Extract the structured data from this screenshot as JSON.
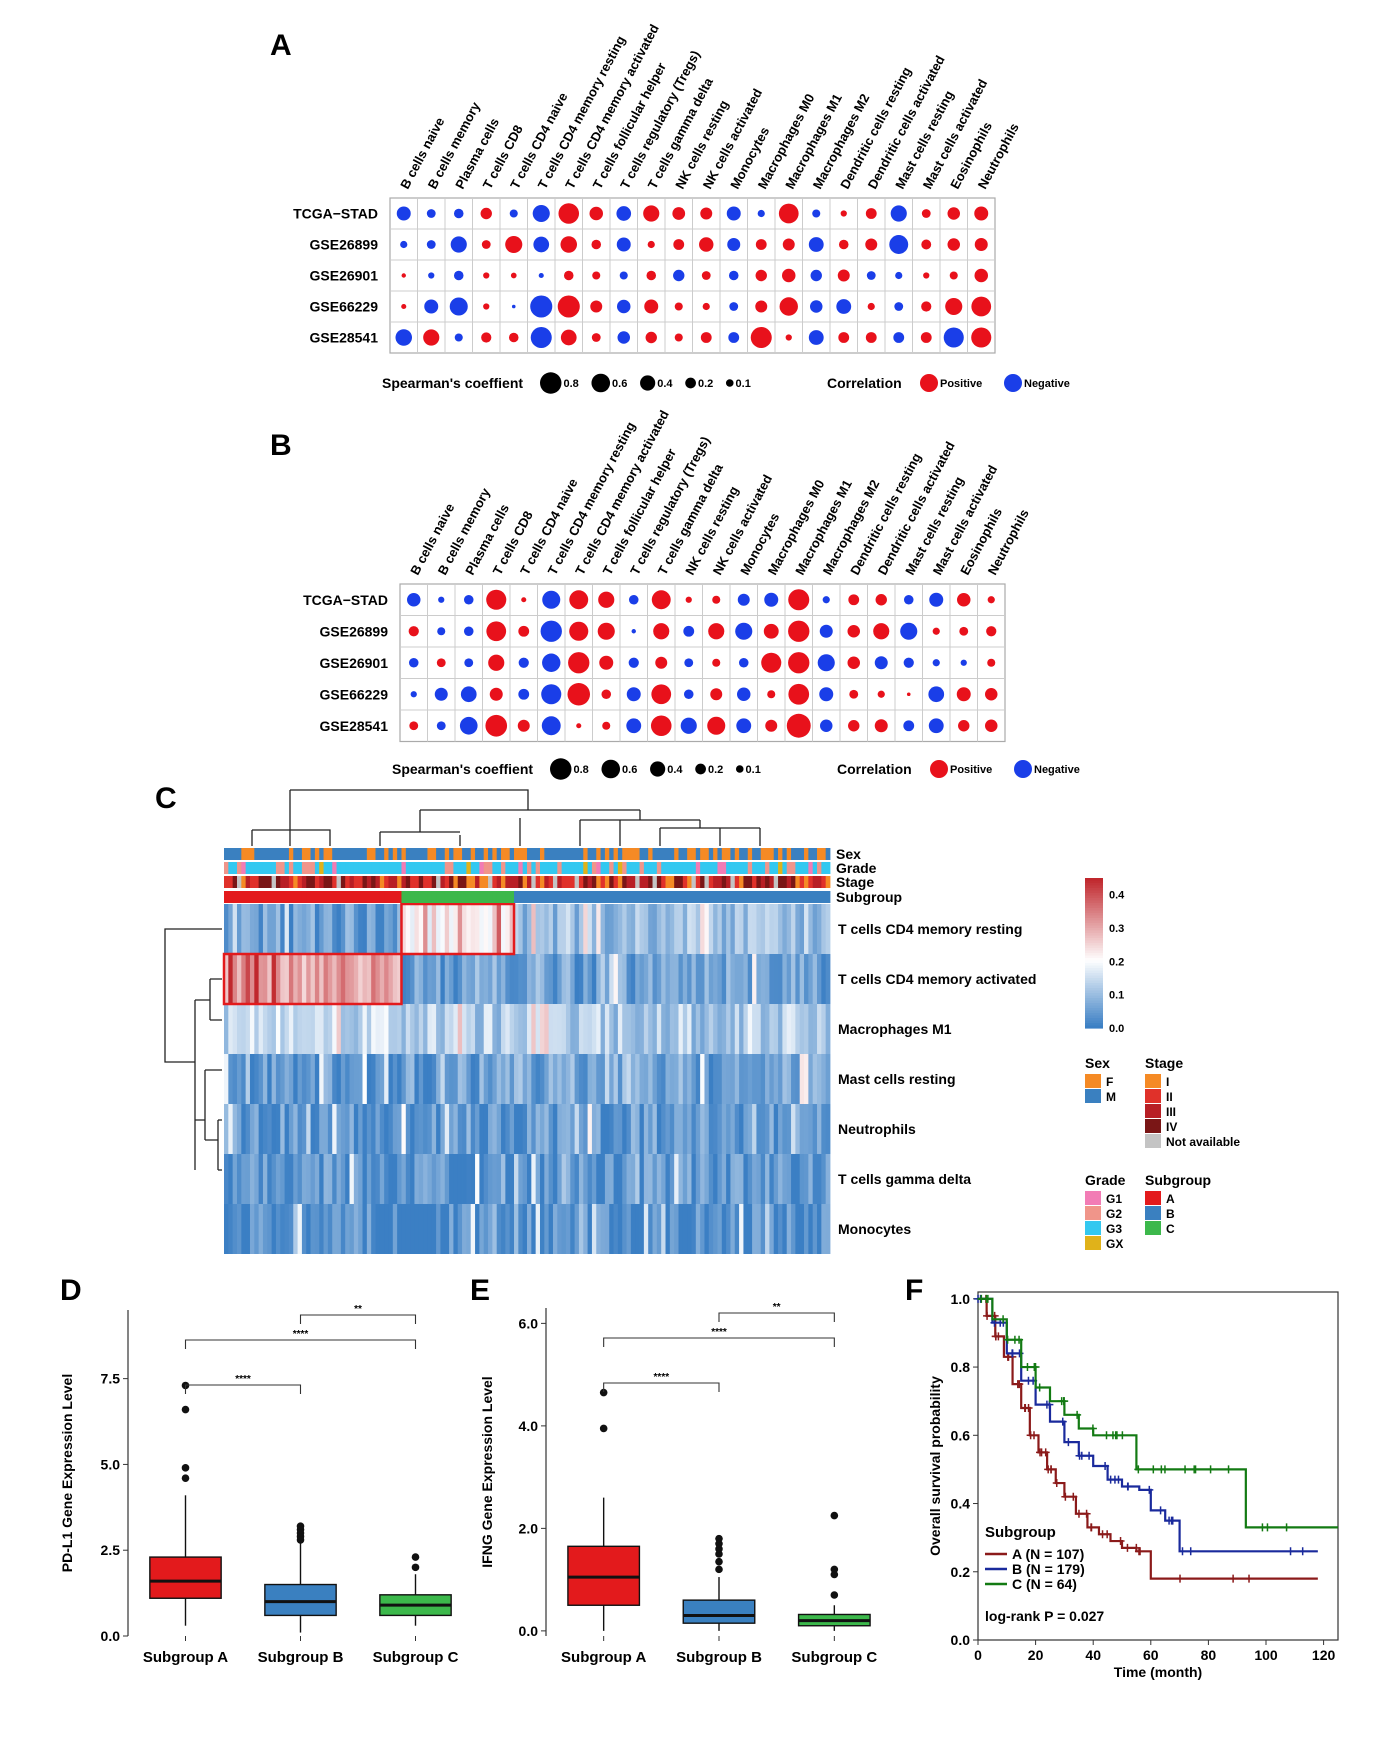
{
  "panels": {
    "a": "A",
    "b": "B",
    "c": "C",
    "d": "D",
    "e": "E",
    "f": "F"
  },
  "colors": {
    "pos": "#e8111b",
    "neg": "#1a3ee8",
    "red": "#e31a1c",
    "blue": "#3a80c0",
    "green": "#3cb84b",
    "heat_low": "#3b7fc4",
    "heat_mid": "#ffffff",
    "heat_high": "#c0272d",
    "km_a": "#8b1a1a",
    "km_b": "#1a2a9c",
    "km_c": "#137a13"
  },
  "cell_types": [
    "B cells naive",
    "B cells memory",
    "Plasma cells",
    "T cells CD8",
    "T cells CD4 naive",
    "T cells CD4 memory resting",
    "T cells CD4 memory activated",
    "T cells follicular helper",
    "T cells regulatory (Tregs)",
    "T cells gamma delta",
    "NK cells resting",
    "NK cells activated",
    "Monocytes",
    "Macrophages M0",
    "Macrophages M1",
    "Macrophages M2",
    "Dendritic cells resting",
    "Dendritic cells activated",
    "Mast cells resting",
    "Mast cells activated",
    "Eosinophils",
    "Neutrophils"
  ],
  "datasets": [
    "TCGA−STAD",
    "GSE26899",
    "GSE26901",
    "GSE66229",
    "GSE28541"
  ],
  "legend": {
    "size_title": "Spearman's coeffient",
    "size_values": [
      0.8,
      0.6,
      0.4,
      0.2,
      0.1
    ],
    "size_labels": [
      "0.8",
      "0.6",
      "0.4",
      "0.2",
      "0.1"
    ],
    "corr_title": "Correlation",
    "pos_label": "Positive",
    "neg_label": "Negative"
  },
  "chart_data": [
    {
      "type": "scatter",
      "panel": "A",
      "subtype": "correlation dot matrix",
      "x_categories": "cell_types",
      "y_categories": "datasets",
      "values": [
        [
          -0.3,
          -0.12,
          -0.14,
          0.2,
          -0.1,
          -0.45,
          0.65,
          0.28,
          -0.33,
          0.4,
          0.25,
          0.22,
          -0.3,
          -0.08,
          0.6,
          -0.1,
          0.06,
          0.18,
          -0.4,
          0.12,
          0.24,
          0.3
        ],
        [
          -0.08,
          -0.12,
          -0.4,
          0.12,
          0.45,
          -0.38,
          0.42,
          0.14,
          -0.3,
          0.08,
          0.18,
          0.32,
          -0.26,
          0.18,
          0.22,
          -0.34,
          0.14,
          0.22,
          -0.55,
          0.15,
          0.24,
          0.26
        ],
        [
          0.03,
          -0.06,
          -0.14,
          0.06,
          0.05,
          -0.04,
          0.14,
          0.1,
          -0.1,
          0.14,
          -0.2,
          0.12,
          -0.14,
          0.2,
          0.28,
          -0.2,
          0.22,
          -0.12,
          -0.08,
          0.06,
          0.1,
          0.28
        ],
        [
          0.04,
          -0.3,
          -0.5,
          0.06,
          -0.02,
          -0.75,
          0.75,
          0.22,
          -0.28,
          0.3,
          0.1,
          0.08,
          -0.12,
          0.22,
          0.52,
          -0.24,
          -0.34,
          0.08,
          -0.12,
          0.16,
          0.45,
          0.6
        ],
        [
          -0.42,
          0.4,
          -0.1,
          0.16,
          0.14,
          -0.68,
          0.38,
          0.12,
          -0.24,
          0.2,
          0.1,
          0.18,
          -0.18,
          0.68,
          0.06,
          -0.34,
          0.18,
          0.18,
          -0.18,
          0.18,
          -0.62,
          0.62
        ]
      ]
    },
    {
      "type": "scatter",
      "panel": "B",
      "subtype": "correlation dot matrix",
      "x_categories": "cell_types",
      "y_categories": "datasets",
      "values": [
        [
          -0.28,
          -0.06,
          -0.14,
          0.62,
          0.04,
          -0.5,
          0.55,
          0.4,
          -0.14,
          0.55,
          0.06,
          0.1,
          -0.22,
          -0.3,
          0.68,
          -0.08,
          0.18,
          0.2,
          -0.14,
          -0.3,
          0.28,
          0.08
        ],
        [
          0.16,
          -0.1,
          -0.14,
          0.6,
          0.18,
          -0.7,
          0.56,
          0.45,
          -0.03,
          0.4,
          -0.18,
          0.4,
          -0.45,
          0.34,
          0.7,
          -0.26,
          0.24,
          0.4,
          -0.45,
          0.08,
          0.12,
          0.16
        ],
        [
          -0.14,
          0.12,
          -0.12,
          0.4,
          -0.16,
          -0.52,
          0.7,
          0.3,
          -0.16,
          0.22,
          -0.12,
          0.1,
          -0.14,
          0.62,
          0.7,
          -0.45,
          0.24,
          -0.26,
          -0.16,
          -0.08,
          -0.06,
          0.1
        ],
        [
          -0.06,
          -0.26,
          -0.38,
          0.26,
          -0.18,
          -0.62,
          0.78,
          0.14,
          -0.3,
          0.6,
          -0.14,
          0.22,
          -0.28,
          0.1,
          0.66,
          -0.3,
          0.12,
          0.08,
          0.02,
          -0.38,
          0.3,
          0.24
        ],
        [
          0.12,
          -0.12,
          -0.48,
          0.72,
          0.22,
          -0.55,
          0.04,
          0.1,
          -0.34,
          0.65,
          -0.4,
          0.5,
          -0.34,
          0.22,
          0.88,
          -0.24,
          0.2,
          0.26,
          -0.18,
          -0.34,
          0.2,
          0.24
        ]
      ]
    },
    {
      "type": "heatmap",
      "panel": "C",
      "rows": [
        "T cells CD4 memory resting",
        "T cells CD4 memory activated",
        "Macrophages M1",
        "Mast cells resting",
        "Neutrophils",
        "T cells gamma delta",
        "Monocytes"
      ],
      "annotation_tracks": [
        "Sex",
        "Grade",
        "Stage",
        "Subgroup"
      ],
      "color_scale": {
        "min": 0.0,
        "max": 0.45,
        "ticks": [
          0.0,
          0.1,
          0.2,
          0.3,
          0.4
        ],
        "tick_labels": [
          "0.0",
          "0.1",
          "0.2",
          "0.3",
          "0.4"
        ]
      },
      "legends": [
        {
          "title": "Sex",
          "items": [
            {
              "label": "F",
              "color": "#f58a25"
            },
            {
              "label": "M",
              "color": "#3a80c0"
            }
          ]
        },
        {
          "title": "Stage",
          "items": [
            {
              "label": "I",
              "color": "#f58a25"
            },
            {
              "label": "II",
              "color": "#e0312a"
            },
            {
              "label": "III",
              "color": "#b81f25"
            },
            {
              "label": "IV",
              "color": "#7a1616"
            },
            {
              "label": "Not available",
              "color": "#c4c4c4"
            }
          ]
        },
        {
          "title": "Grade",
          "items": [
            {
              "label": "G1",
              "color": "#f27cb5"
            },
            {
              "label": "G2",
              "color": "#f0958a"
            },
            {
              "label": "G3",
              "color": "#33c8f0"
            },
            {
              "label": "GX",
              "color": "#e0b21a"
            }
          ]
        },
        {
          "title": "Subgroup",
          "items": [
            {
              "label": "A",
              "color": "#e31a1c"
            },
            {
              "label": "B",
              "color": "#3a80c0"
            },
            {
              "label": "C",
              "color": "#3cb84b"
            }
          ]
        }
      ]
    },
    {
      "type": "bar",
      "panel": "D",
      "subtype": "boxplot",
      "categories": [
        "Subgroup A",
        "Subgroup B",
        "Subgroup C"
      ],
      "ylabel": "PD-L1 Gene Expression Level",
      "ylim": [
        0,
        9.5
      ],
      "yticks": [
        0.0,
        2.5,
        5.0,
        7.5
      ],
      "ytick_labels": [
        "0.0",
        "2.5",
        "5.0",
        "7.5"
      ],
      "boxes": [
        {
          "min": 0.3,
          "q1": 1.1,
          "median": 1.6,
          "q3": 2.3,
          "max": 4.1,
          "outliers": [
            4.6,
            4.9,
            6.6,
            7.3
          ]
        },
        {
          "min": 0.1,
          "q1": 0.6,
          "median": 1.0,
          "q3": 1.5,
          "max": 2.7,
          "outliers": [
            2.8,
            2.9,
            3.0,
            3.1,
            3.2
          ]
        },
        {
          "min": 0.3,
          "q1": 0.6,
          "median": 0.9,
          "q3": 1.2,
          "max": 1.8,
          "outliers": [
            2.0,
            2.3
          ]
        }
      ],
      "brackets": [
        {
          "from": 0,
          "to": 1,
          "label": "****"
        },
        {
          "from": 0,
          "to": 2,
          "label": "****"
        },
        {
          "from": 1,
          "to": 2,
          "label": "**"
        }
      ]
    },
    {
      "type": "bar",
      "panel": "E",
      "subtype": "boxplot",
      "categories": [
        "Subgroup A",
        "Subgroup B",
        "Subgroup C"
      ],
      "ylabel": "IFNG Gene Expression Level",
      "ylim": [
        -0.1,
        6.3
      ],
      "yticks": [
        0.0,
        2.0,
        4.0,
        6.0
      ],
      "ytick_labels": [
        "0.0",
        "2.0",
        "4.0",
        "6.0"
      ],
      "boxes": [
        {
          "min": 0.0,
          "q1": 0.5,
          "median": 1.05,
          "q3": 1.65,
          "max": 2.6,
          "outliers": [
            3.95,
            4.65
          ]
        },
        {
          "min": 0.0,
          "q1": 0.15,
          "median": 0.3,
          "q3": 0.6,
          "max": 1.05,
          "outliers": [
            1.2,
            1.35,
            1.5,
            1.6,
            1.7,
            1.8
          ]
        },
        {
          "min": 0.0,
          "q1": 0.1,
          "median": 0.2,
          "q3": 0.32,
          "max": 0.5,
          "outliers": [
            0.7,
            1.1,
            1.2,
            2.25
          ]
        }
      ],
      "brackets": [
        {
          "from": 0,
          "to": 1,
          "label": "****"
        },
        {
          "from": 0,
          "to": 2,
          "label": "****"
        },
        {
          "from": 1,
          "to": 2,
          "label": "**"
        }
      ]
    },
    {
      "type": "line",
      "panel": "F",
      "subtype": "kaplan-meier",
      "xlabel": "Time (month)",
      "ylabel": "Overall survival probability",
      "xlim": [
        0,
        125
      ],
      "ylim": [
        0,
        1.02
      ],
      "xticks": [
        0,
        20,
        40,
        60,
        80,
        100,
        120
      ],
      "yticks": [
        0.0,
        0.2,
        0.4,
        0.6,
        0.8,
        1.0
      ],
      "xtick_labels": [
        "0",
        "20",
        "40",
        "60",
        "80",
        "100",
        "120"
      ],
      "ytick_labels": [
        "0.0",
        "0.2",
        "0.4",
        "0.6",
        "0.8",
        "1.0"
      ],
      "legend_title": "Subgroup",
      "annotation": "log-rank P = 0.027",
      "series": [
        {
          "name": "A (N = 107)",
          "x": [
            0,
            3,
            6,
            9,
            12,
            15,
            18,
            21,
            24,
            27,
            30,
            34,
            38,
            42,
            46,
            50,
            55,
            60,
            118
          ],
          "y": [
            1.0,
            0.95,
            0.89,
            0.83,
            0.75,
            0.68,
            0.6,
            0.55,
            0.5,
            0.46,
            0.42,
            0.37,
            0.33,
            0.31,
            0.29,
            0.27,
            0.26,
            0.18,
            0.18
          ]
        },
        {
          "name": "B (N = 179)",
          "x": [
            0,
            5,
            10,
            15,
            20,
            25,
            30,
            35,
            40,
            45,
            50,
            56,
            60,
            65,
            70,
            80,
            118
          ],
          "y": [
            1.0,
            0.93,
            0.84,
            0.76,
            0.69,
            0.64,
            0.58,
            0.54,
            0.51,
            0.47,
            0.45,
            0.44,
            0.38,
            0.35,
            0.26,
            0.26,
            0.26
          ]
        },
        {
          "name": "C (N = 64)",
          "x": [
            0,
            5,
            10,
            15,
            20,
            25,
            30,
            35,
            40,
            45,
            50,
            55,
            60,
            70,
            80,
            93,
            125
          ],
          "y": [
            1.0,
            0.94,
            0.88,
            0.8,
            0.74,
            0.7,
            0.66,
            0.62,
            0.6,
            0.6,
            0.6,
            0.5,
            0.5,
            0.5,
            0.5,
            0.33,
            0.33
          ]
        }
      ]
    }
  ]
}
